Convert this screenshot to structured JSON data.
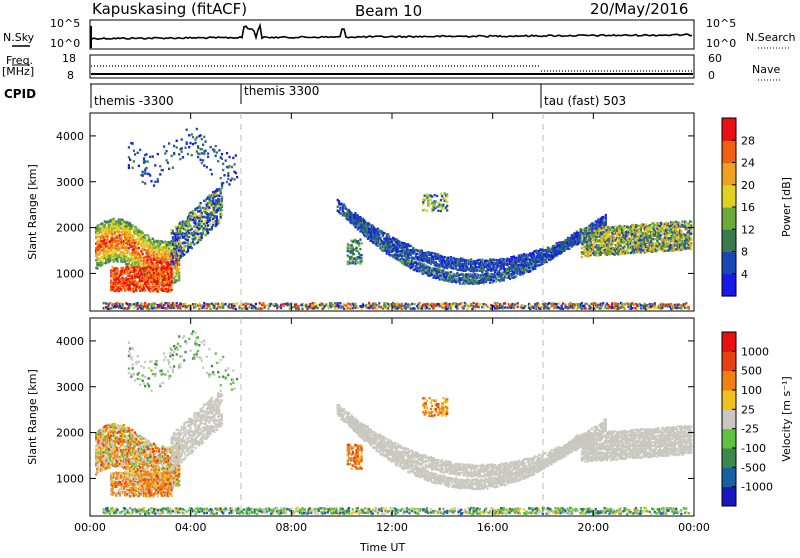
{
  "header": {
    "station": "Kapuskasing (fitACF)",
    "beam": "Beam 10",
    "date": "20/May/2016"
  },
  "top_panels": {
    "nsky_label": "N.Sky",
    "nsky_ticks": [
      "10^5",
      "10^0"
    ],
    "nsearch_label": "N.Search",
    "nsearch_ticks": [
      "10^5",
      "10^0"
    ],
    "freq_label": "Freq.",
    "freq_unit": "[MHz]",
    "freq_ticks": [
      "18",
      "8"
    ],
    "nave_label": "Nave",
    "nave_ticks": [
      "60",
      "0"
    ],
    "cpid_label": "CPID",
    "cpid_segments": [
      "themis -3300",
      "themis 3300",
      "tau (fast) 503"
    ]
  },
  "chart_data": [
    {
      "type": "heatmap",
      "title": "",
      "quantity": "Power",
      "xlabel": "Time UT",
      "ylabel": "Slant Range [km]",
      "x_range_hours": [
        0,
        24
      ],
      "ylim": [
        180,
        4500
      ],
      "x_ticks": [
        "00:00",
        "04:00",
        "08:00",
        "12:00",
        "16:00",
        "20:00",
        "00:00"
      ],
      "y_ticks": [
        "1000",
        "2000",
        "3000",
        "4000"
      ],
      "colorbar_label": "Power [dB]",
      "colorbar_ticks": [
        "4",
        "8",
        "12",
        "16",
        "20",
        "24",
        "28"
      ],
      "colorbar_range": [
        0,
        30
      ],
      "colors": [
        "#1818e8",
        "#1848b8",
        "#3a7a50",
        "#6aaa3a",
        "#e0d020",
        "#f0a020",
        "#f06010",
        "#e81010"
      ]
    },
    {
      "type": "heatmap",
      "title": "",
      "quantity": "Velocity",
      "xlabel": "Time UT",
      "ylabel": "Slant Range [km]",
      "x_range_hours": [
        0,
        24
      ],
      "ylim": [
        180,
        4500
      ],
      "x_ticks": [
        "00:00",
        "04:00",
        "08:00",
        "12:00",
        "16:00",
        "20:00",
        "00:00"
      ],
      "y_ticks": [
        "1000",
        "2000",
        "3000",
        "4000"
      ],
      "colorbar_label": "Velocity [m s⁻¹]",
      "colorbar_ticks": [
        "1000",
        "500",
        "100",
        "25",
        "-25",
        "-100",
        "-500",
        "-1000"
      ],
      "colors": [
        "#1818c0",
        "#1860a0",
        "#3a8a50",
        "#60c040",
        "#c8c8c0",
        "#f0c020",
        "#f08010",
        "#e84010",
        "#e81010"
      ],
      "ground_scatter_color": "#c8c8c0"
    }
  ]
}
